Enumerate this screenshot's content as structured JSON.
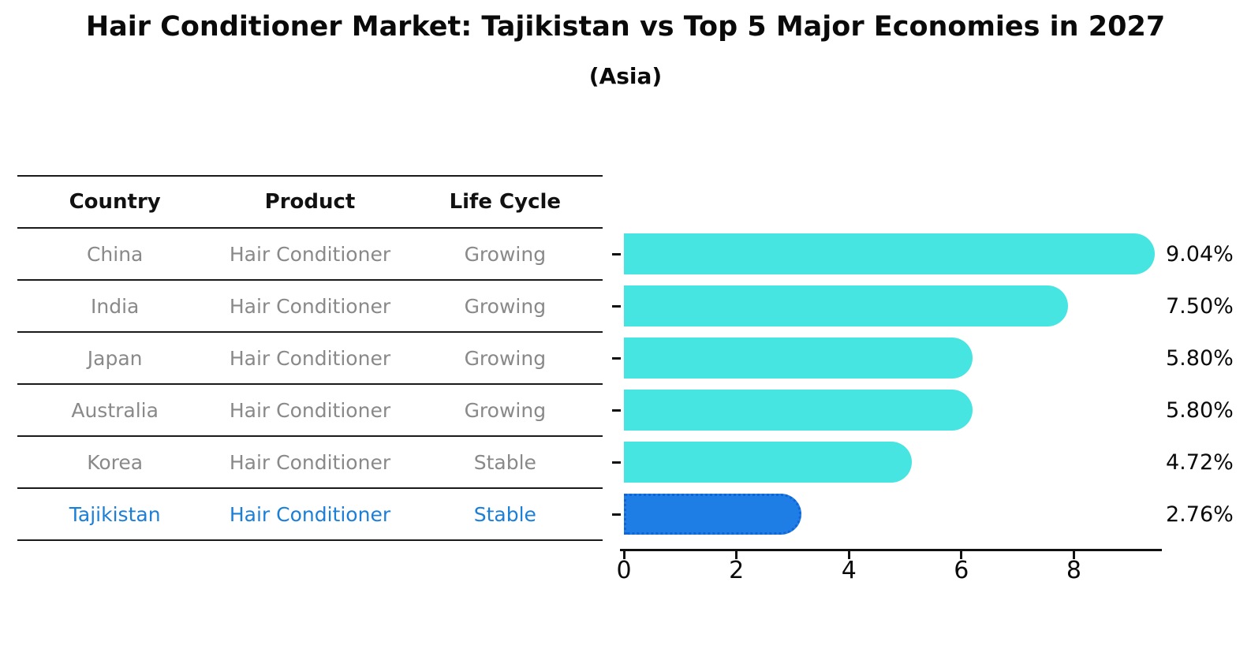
{
  "chart_data": {
    "type": "bar",
    "orientation": "horizontal",
    "title": "Hair Conditioner Market: Tajikistan vs Top 5 Major Economies in 2027",
    "subtitle": "(Asia)",
    "categories": [
      "China",
      "India",
      "Japan",
      "Australia",
      "Korea",
      "Tajikistan"
    ],
    "values": [
      9.04,
      7.5,
      5.8,
      5.8,
      4.72,
      2.76
    ],
    "value_labels": [
      "9.04%",
      "7.50%",
      "5.80%",
      "5.80%",
      "4.72%",
      "2.76%"
    ],
    "x_ticks": [
      0,
      2,
      4,
      6,
      8
    ],
    "x_tick_labels": [
      "0",
      "2",
      "4",
      "6",
      "8"
    ],
    "xlim": [
      0,
      9.55
    ],
    "grid": false,
    "legend": false,
    "bar_color": "#47e5e1",
    "highlight_color": "#1e7ee6",
    "highlight_border_color": "#1263d6",
    "highlight_index": 5
  },
  "table": {
    "headers": [
      "Country",
      "Product",
      "Life Cycle"
    ],
    "rows": [
      {
        "country": "China",
        "product": "Hair Conditioner",
        "life_cycle": "Growing",
        "highlighted": false
      },
      {
        "country": "India",
        "product": "Hair Conditioner",
        "life_cycle": "Growing",
        "highlighted": false
      },
      {
        "country": "Japan",
        "product": "Hair Conditioner",
        "life_cycle": "Growing",
        "highlighted": false
      },
      {
        "country": "Australia",
        "product": "Hair Conditioner",
        "life_cycle": "Growing",
        "highlighted": false
      },
      {
        "country": "Korea",
        "product": "Hair Conditioner",
        "life_cycle": "Stable",
        "highlighted": false
      },
      {
        "country": "Tajikistan",
        "product": "Hair Conditioner",
        "life_cycle": "Stable",
        "highlighted": true
      }
    ]
  },
  "colors": {
    "highlight_text_blue": "#1b7fd8",
    "table_text_gray": "#898989",
    "line_black": "#1a1a1a"
  }
}
